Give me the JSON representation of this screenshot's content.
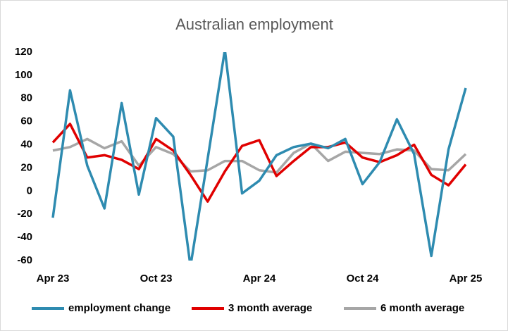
{
  "chart_data": {
    "type": "line",
    "title": "Australian employment",
    "categories": [
      "Apr 23",
      null,
      null,
      null,
      null,
      null,
      "Oct 23",
      null,
      null,
      null,
      null,
      null,
      "Apr 24",
      null,
      null,
      null,
      null,
      null,
      "Oct 24",
      null,
      null,
      null,
      null,
      null,
      "Apr 25"
    ],
    "series": [
      {
        "name": "employment change",
        "color": "#2e8bb0",
        "values": [
          -23,
          87,
          22,
          -15,
          76,
          -3,
          63,
          47,
          -65,
          28,
          122,
          -2,
          9,
          31,
          38,
          41,
          37,
          45,
          6,
          25,
          62,
          32,
          -56,
          36,
          89
        ]
      },
      {
        "name": "3 month average",
        "color": "#e00000",
        "values": [
          42,
          58,
          29,
          31,
          27,
          19,
          45,
          35,
          14,
          -9,
          17,
          39,
          44,
          13,
          26,
          38,
          38,
          42,
          29,
          25,
          31,
          40,
          14,
          5,
          23
        ]
      },
      {
        "name": "6 month average",
        "color": "#a6a6a6",
        "values": [
          35,
          38,
          45,
          37,
          43,
          22,
          38,
          32,
          17,
          18,
          26,
          26,
          18,
          16,
          33,
          41,
          26,
          34,
          33,
          32,
          36,
          35,
          19,
          18,
          32
        ]
      }
    ],
    "ylim": [
      -60,
      120
    ],
    "yticks": [
      -60,
      -40,
      -20,
      0,
      20,
      40,
      60,
      80,
      100,
      120
    ],
    "grid": false,
    "legend": "bottom"
  }
}
